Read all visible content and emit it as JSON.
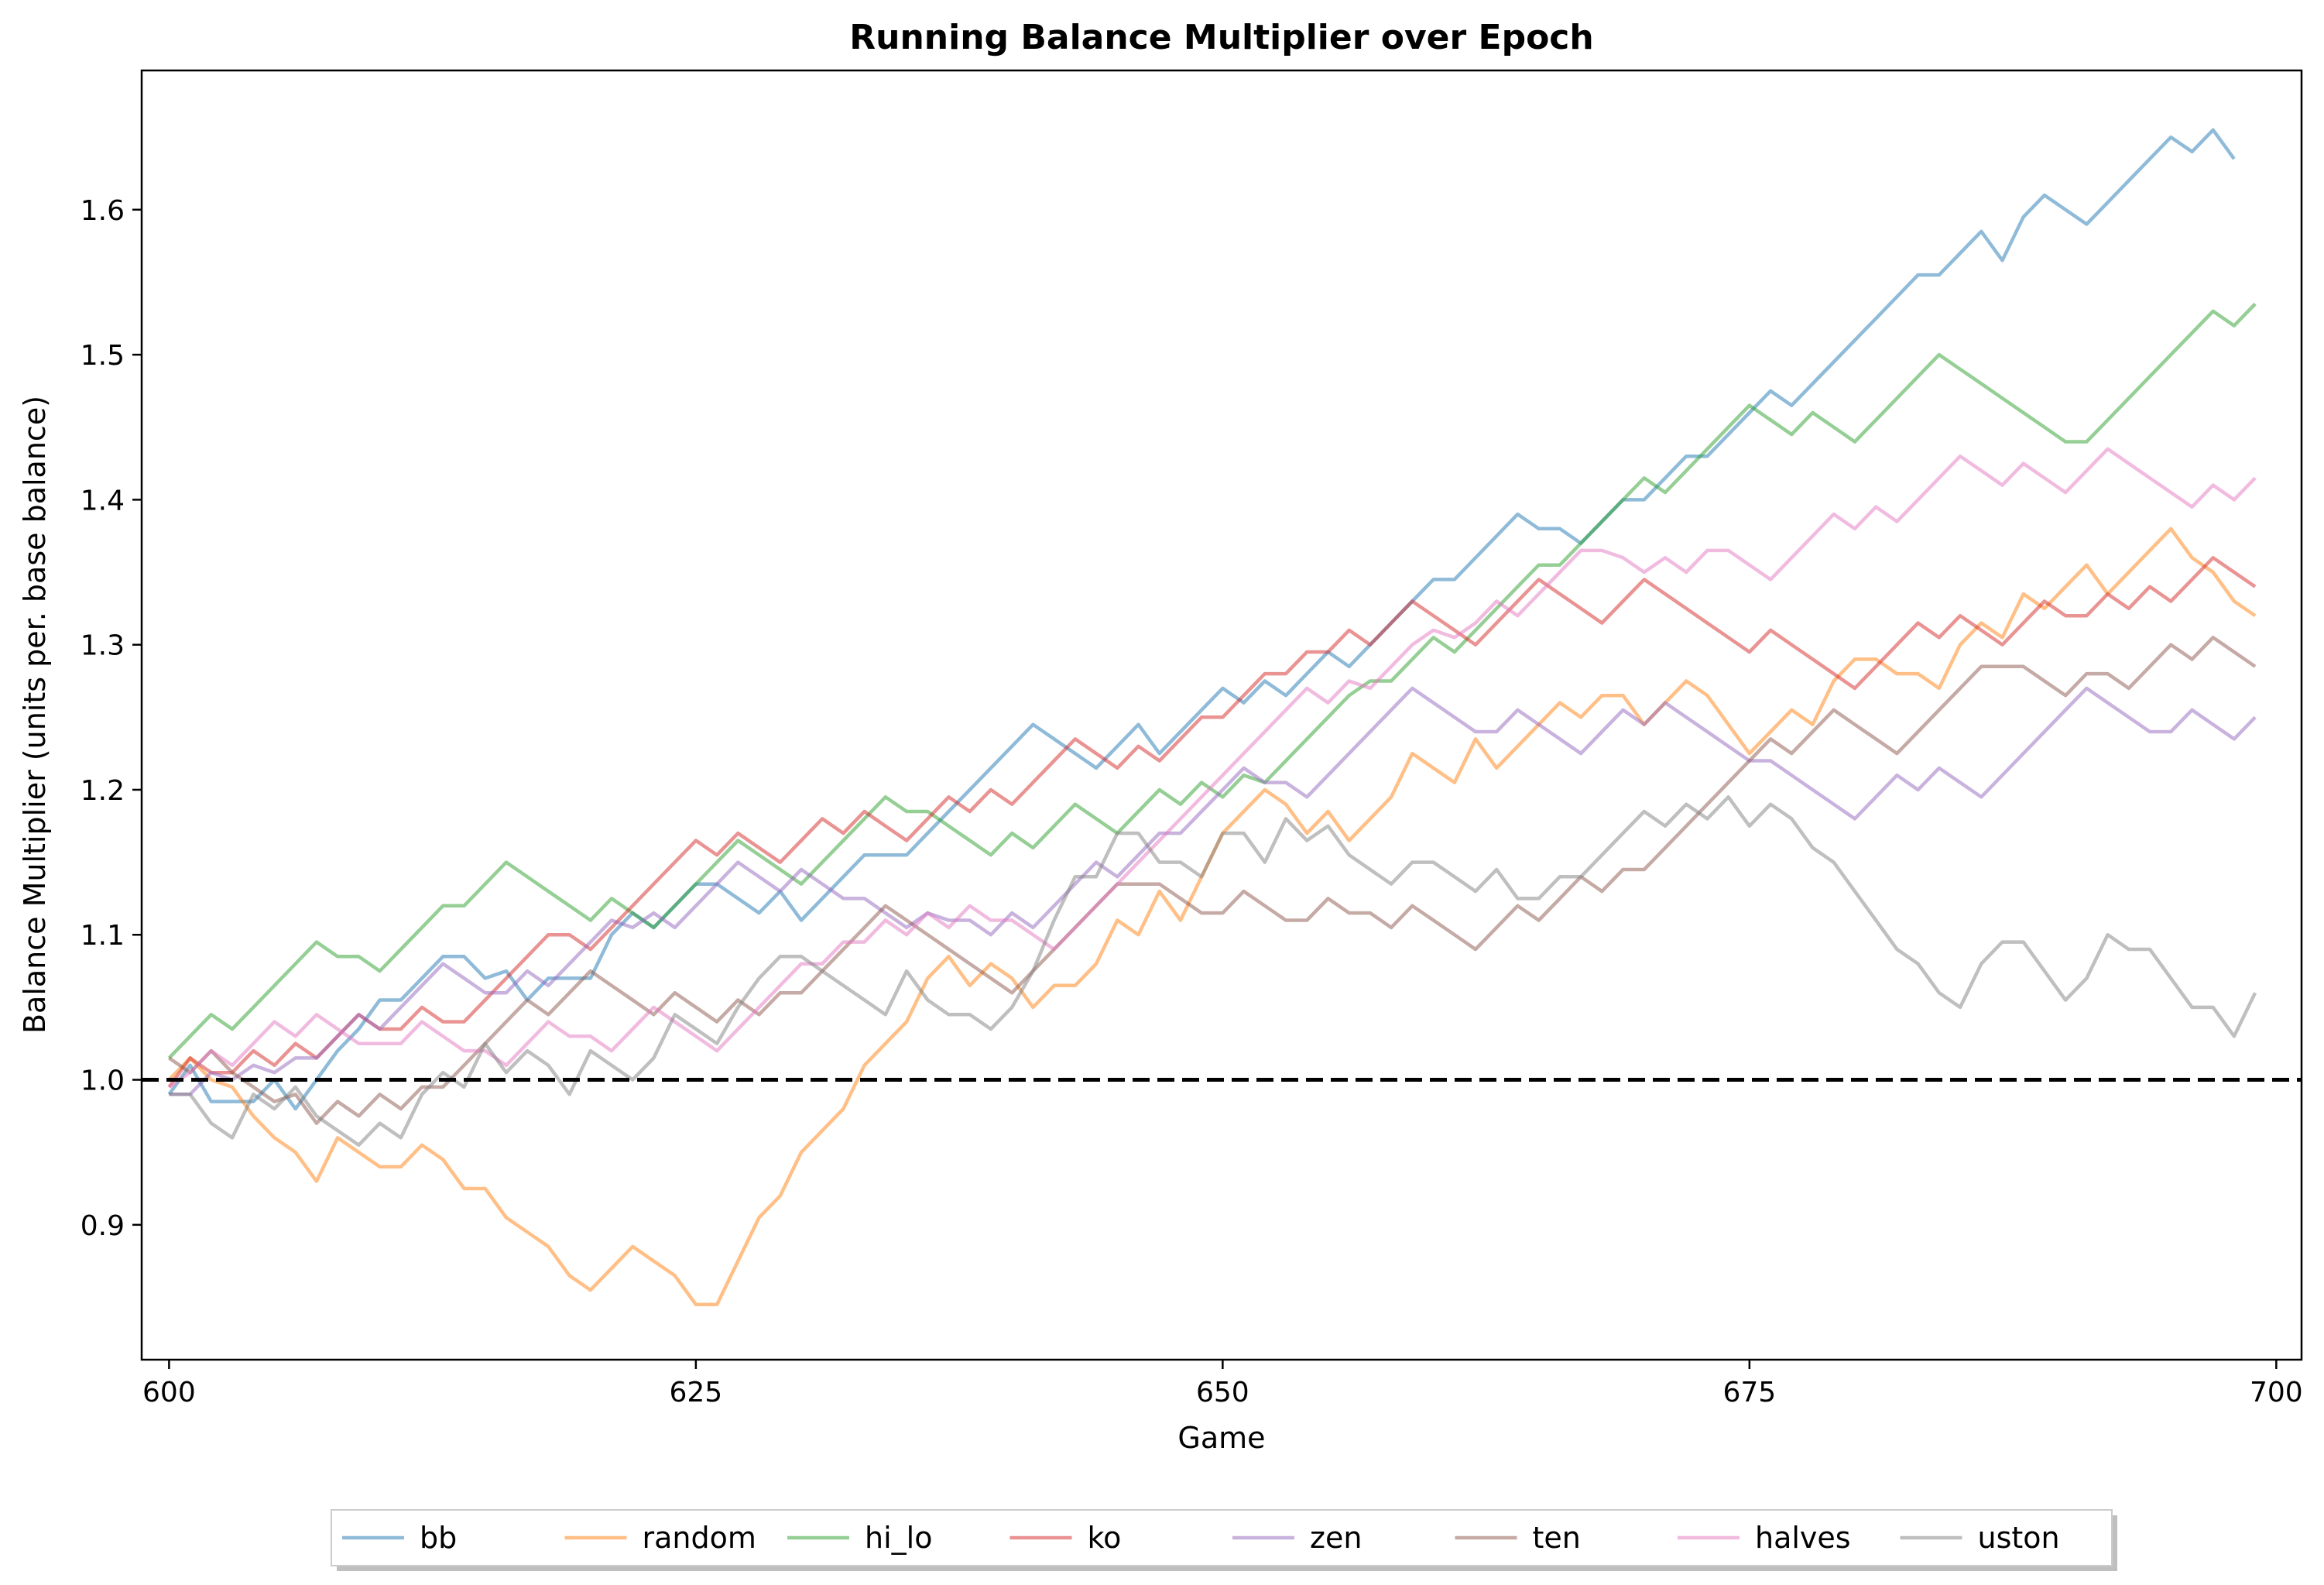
{
  "chart_data": {
    "type": "line",
    "title": "Running Balance Multiplier over Epoch",
    "xlabel": "Game",
    "ylabel": "Balance Multiplier (units per. base balance)",
    "xlim": [
      598.7,
      701.2
    ],
    "ylim": [
      0.807,
      1.696
    ],
    "xticks": [
      600,
      625,
      650,
      675,
      700
    ],
    "yticks": [
      0.9,
      1.0,
      1.1,
      1.2,
      1.3,
      1.4,
      1.5,
      1.6
    ],
    "grid": false,
    "legend_position": "bottom-center",
    "reference_line": {
      "y": 1.0,
      "style": "dashed",
      "color": "#000000"
    },
    "x_start": 600,
    "series": [
      {
        "name": "bb",
        "color": "#1f77b4",
        "values": [
          0.99,
          1.01,
          0.985,
          0.985,
          0.985,
          1.0,
          0.98,
          1.0,
          1.02,
          1.035,
          1.055,
          1.055,
          1.07,
          1.085,
          1.085,
          1.07,
          1.075,
          1.055,
          1.07,
          1.07,
          1.07,
          1.1,
          1.115,
          1.105,
          1.12,
          1.135,
          1.135,
          1.125,
          1.115,
          1.13,
          1.11,
          1.125,
          1.14,
          1.155,
          1.155,
          1.155,
          1.17,
          1.185,
          1.2,
          1.215,
          1.23,
          1.245,
          1.235,
          1.225,
          1.215,
          1.23,
          1.245,
          1.225,
          1.24,
          1.255,
          1.27,
          1.26,
          1.275,
          1.265,
          1.28,
          1.295,
          1.285,
          1.3,
          1.315,
          1.33,
          1.345,
          1.345,
          1.36,
          1.375,
          1.39,
          1.38,
          1.38,
          1.37,
          1.385,
          1.4,
          1.4,
          1.415,
          1.43,
          1.43,
          1.445,
          1.46,
          1.475,
          1.465,
          1.48,
          1.495,
          1.51,
          1.525,
          1.54,
          1.555,
          1.555,
          1.57,
          1.585,
          1.565,
          1.595,
          1.61,
          1.6,
          1.59,
          1.605,
          1.62,
          1.635,
          1.65,
          1.64,
          1.655,
          1.635
        ]
      },
      {
        "name": "random",
        "color": "#ff7f0e",
        "values": [
          1.0,
          1.015,
          1.0,
          0.995,
          0.975,
          0.96,
          0.95,
          0.93,
          0.96,
          0.95,
          0.94,
          0.94,
          0.955,
          0.945,
          0.925,
          0.925,
          0.905,
          0.895,
          0.885,
          0.865,
          0.855,
          0.87,
          0.885,
          0.875,
          0.865,
          0.845,
          0.845,
          0.875,
          0.905,
          0.92,
          0.95,
          0.965,
          0.98,
          1.01,
          1.025,
          1.04,
          1.07,
          1.085,
          1.065,
          1.08,
          1.07,
          1.05,
          1.065,
          1.065,
          1.08,
          1.11,
          1.1,
          1.13,
          1.11,
          1.14,
          1.17,
          1.185,
          1.2,
          1.19,
          1.17,
          1.185,
          1.165,
          1.18,
          1.195,
          1.225,
          1.215,
          1.205,
          1.235,
          1.215,
          1.23,
          1.245,
          1.26,
          1.25,
          1.265,
          1.265,
          1.245,
          1.26,
          1.275,
          1.265,
          1.245,
          1.225,
          1.24,
          1.255,
          1.245,
          1.275,
          1.29,
          1.29,
          1.28,
          1.28,
          1.27,
          1.3,
          1.315,
          1.305,
          1.335,
          1.325,
          1.34,
          1.355,
          1.335,
          1.35,
          1.365,
          1.38,
          1.36,
          1.35,
          1.33,
          1.32
        ]
      },
      {
        "name": "hi_lo",
        "color": "#2ca02c",
        "values": [
          1.015,
          1.03,
          1.045,
          1.035,
          1.05,
          1.065,
          1.08,
          1.095,
          1.085,
          1.085,
          1.075,
          1.09,
          1.105,
          1.12,
          1.12,
          1.135,
          1.15,
          1.14,
          1.13,
          1.12,
          1.11,
          1.125,
          1.115,
          1.105,
          1.12,
          1.135,
          1.15,
          1.165,
          1.155,
          1.145,
          1.135,
          1.15,
          1.165,
          1.18,
          1.195,
          1.185,
          1.185,
          1.175,
          1.165,
          1.155,
          1.17,
          1.16,
          1.175,
          1.19,
          1.18,
          1.17,
          1.185,
          1.2,
          1.19,
          1.205,
          1.195,
          1.21,
          1.205,
          1.22,
          1.235,
          1.25,
          1.265,
          1.275,
          1.275,
          1.29,
          1.305,
          1.295,
          1.31,
          1.325,
          1.34,
          1.355,
          1.355,
          1.37,
          1.385,
          1.4,
          1.415,
          1.405,
          1.42,
          1.435,
          1.45,
          1.465,
          1.455,
          1.445,
          1.46,
          1.45,
          1.44,
          1.455,
          1.47,
          1.485,
          1.5,
          1.49,
          1.48,
          1.47,
          1.46,
          1.45,
          1.44,
          1.44,
          1.455,
          1.47,
          1.485,
          1.5,
          1.515,
          1.53,
          1.52,
          1.535
        ]
      },
      {
        "name": "ko",
        "color": "#d62728",
        "values": [
          0.995,
          1.015,
          1.005,
          1.005,
          1.02,
          1.01,
          1.025,
          1.015,
          1.03,
          1.045,
          1.035,
          1.035,
          1.05,
          1.04,
          1.04,
          1.055,
          1.07,
          1.085,
          1.1,
          1.1,
          1.09,
          1.105,
          1.12,
          1.135,
          1.15,
          1.165,
          1.155,
          1.17,
          1.16,
          1.15,
          1.165,
          1.18,
          1.17,
          1.185,
          1.175,
          1.165,
          1.18,
          1.195,
          1.185,
          1.2,
          1.19,
          1.205,
          1.22,
          1.235,
          1.225,
          1.215,
          1.23,
          1.22,
          1.235,
          1.25,
          1.25,
          1.265,
          1.28,
          1.28,
          1.295,
          1.295,
          1.31,
          1.3,
          1.315,
          1.33,
          1.32,
          1.31,
          1.3,
          1.315,
          1.33,
          1.345,
          1.335,
          1.325,
          1.315,
          1.33,
          1.345,
          1.335,
          1.325,
          1.315,
          1.305,
          1.295,
          1.31,
          1.3,
          1.29,
          1.28,
          1.27,
          1.285,
          1.3,
          1.315,
          1.305,
          1.32,
          1.31,
          1.3,
          1.315,
          1.33,
          1.32,
          1.32,
          1.335,
          1.325,
          1.34,
          1.33,
          1.345,
          1.36,
          1.35,
          1.34
        ]
      },
      {
        "name": "zen",
        "color": "#9467bd",
        "values": [
          0.99,
          0.99,
          1.005,
          1.0,
          1.01,
          1.005,
          1.015,
          1.015,
          1.03,
          1.045,
          1.035,
          1.05,
          1.065,
          1.08,
          1.07,
          1.06,
          1.06,
          1.075,
          1.065,
          1.08,
          1.095,
          1.11,
          1.105,
          1.115,
          1.105,
          1.12,
          1.135,
          1.15,
          1.14,
          1.13,
          1.145,
          1.135,
          1.125,
          1.125,
          1.115,
          1.105,
          1.115,
          1.11,
          1.11,
          1.1,
          1.115,
          1.105,
          1.12,
          1.135,
          1.15,
          1.14,
          1.155,
          1.17,
          1.17,
          1.185,
          1.2,
          1.215,
          1.205,
          1.205,
          1.195,
          1.21,
          1.225,
          1.24,
          1.255,
          1.27,
          1.26,
          1.25,
          1.24,
          1.24,
          1.255,
          1.245,
          1.235,
          1.225,
          1.24,
          1.255,
          1.245,
          1.26,
          1.25,
          1.24,
          1.23,
          1.22,
          1.22,
          1.21,
          1.2,
          1.19,
          1.18,
          1.195,
          1.21,
          1.2,
          1.215,
          1.205,
          1.195,
          1.21,
          1.225,
          1.24,
          1.255,
          1.27,
          1.26,
          1.25,
          1.24,
          1.24,
          1.255,
          1.245,
          1.235,
          1.25
        ]
      },
      {
        "name": "ten",
        "color": "#8c564b",
        "values": [
          1.015,
          1.005,
          1.02,
          1.005,
          0.995,
          0.985,
          0.99,
          0.97,
          0.985,
          0.975,
          0.99,
          0.98,
          0.995,
          0.995,
          1.01,
          1.025,
          1.04,
          1.055,
          1.045,
          1.06,
          1.075,
          1.065,
          1.055,
          1.045,
          1.06,
          1.05,
          1.04,
          1.055,
          1.045,
          1.06,
          1.06,
          1.075,
          1.09,
          1.105,
          1.12,
          1.11,
          1.1,
          1.09,
          1.08,
          1.07,
          1.06,
          1.075,
          1.09,
          1.105,
          1.12,
          1.135,
          1.135,
          1.135,
          1.125,
          1.115,
          1.115,
          1.13,
          1.12,
          1.11,
          1.11,
          1.125,
          1.115,
          1.115,
          1.105,
          1.12,
          1.11,
          1.1,
          1.09,
          1.105,
          1.12,
          1.11,
          1.125,
          1.14,
          1.13,
          1.145,
          1.145,
          1.16,
          1.175,
          1.19,
          1.205,
          1.22,
          1.235,
          1.225,
          1.24,
          1.255,
          1.245,
          1.235,
          1.225,
          1.24,
          1.255,
          1.27,
          1.285,
          1.285,
          1.285,
          1.275,
          1.265,
          1.28,
          1.28,
          1.27,
          1.285,
          1.3,
          1.29,
          1.305,
          1.295,
          1.285
        ]
      },
      {
        "name": "halves",
        "color": "#e377c2",
        "values": [
          0.995,
          1.005,
          1.02,
          1.01,
          1.025,
          1.04,
          1.03,
          1.045,
          1.035,
          1.025,
          1.025,
          1.025,
          1.04,
          1.03,
          1.02,
          1.02,
          1.01,
          1.025,
          1.04,
          1.03,
          1.03,
          1.02,
          1.035,
          1.05,
          1.04,
          1.03,
          1.02,
          1.035,
          1.05,
          1.065,
          1.08,
          1.08,
          1.095,
          1.095,
          1.11,
          1.1,
          1.115,
          1.105,
          1.12,
          1.11,
          1.11,
          1.1,
          1.09,
          1.105,
          1.12,
          1.135,
          1.15,
          1.165,
          1.18,
          1.195,
          1.21,
          1.225,
          1.24,
          1.255,
          1.27,
          1.26,
          1.275,
          1.27,
          1.285,
          1.3,
          1.31,
          1.305,
          1.315,
          1.33,
          1.32,
          1.335,
          1.35,
          1.365,
          1.365,
          1.36,
          1.35,
          1.36,
          1.35,
          1.365,
          1.365,
          1.355,
          1.345,
          1.36,
          1.375,
          1.39,
          1.38,
          1.395,
          1.385,
          1.4,
          1.415,
          1.43,
          1.42,
          1.41,
          1.425,
          1.415,
          1.405,
          1.42,
          1.435,
          1.425,
          1.415,
          1.405,
          1.395,
          1.41,
          1.4,
          1.415
        ]
      },
      {
        "name": "uston",
        "color": "#7f7f7f",
        "values": [
          0.99,
          0.99,
          0.97,
          0.96,
          0.99,
          0.98,
          0.995,
          0.975,
          0.965,
          0.955,
          0.97,
          0.96,
          0.99,
          1.005,
          0.995,
          1.025,
          1.005,
          1.02,
          1.01,
          0.99,
          1.02,
          1.01,
          1.0,
          1.015,
          1.045,
          1.035,
          1.025,
          1.05,
          1.07,
          1.085,
          1.085,
          1.075,
          1.065,
          1.055,
          1.045,
          1.075,
          1.055,
          1.045,
          1.045,
          1.035,
          1.05,
          1.075,
          1.11,
          1.14,
          1.14,
          1.17,
          1.17,
          1.15,
          1.15,
          1.14,
          1.17,
          1.17,
          1.15,
          1.18,
          1.165,
          1.175,
          1.155,
          1.145,
          1.135,
          1.15,
          1.15,
          1.14,
          1.13,
          1.145,
          1.125,
          1.125,
          1.14,
          1.14,
          1.155,
          1.17,
          1.185,
          1.175,
          1.19,
          1.18,
          1.195,
          1.175,
          1.19,
          1.18,
          1.16,
          1.15,
          1.13,
          1.11,
          1.09,
          1.08,
          1.06,
          1.05,
          1.08,
          1.095,
          1.095,
          1.075,
          1.055,
          1.07,
          1.1,
          1.09,
          1.09,
          1.07,
          1.05,
          1.05,
          1.03,
          1.06
        ]
      }
    ]
  }
}
